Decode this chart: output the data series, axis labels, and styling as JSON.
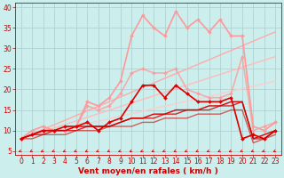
{
  "title": "",
  "xlabel": "Vent moyen/en rafales ( km/h )",
  "ylabel": "",
  "bg_color": "#cceeed",
  "grid_color": "#aacccc",
  "xlim": [
    -0.5,
    23.5
  ],
  "ylim": [
    4,
    41
  ],
  "yticks": [
    5,
    10,
    15,
    20,
    25,
    30,
    35,
    40
  ],
  "xticks": [
    0,
    1,
    2,
    3,
    4,
    5,
    6,
    7,
    8,
    9,
    10,
    11,
    12,
    13,
    14,
    15,
    16,
    17,
    18,
    19,
    20,
    21,
    22,
    23
  ],
  "series": [
    {
      "x": [
        0,
        23
      ],
      "y": [
        8,
        34
      ],
      "color": "#ffaaaa",
      "lw": 1.0,
      "marker": null,
      "ms": 0,
      "alpha": 1.0
    },
    {
      "x": [
        0,
        23
      ],
      "y": [
        8,
        28
      ],
      "color": "#ffbbbb",
      "lw": 1.0,
      "marker": null,
      "ms": 0,
      "alpha": 1.0
    },
    {
      "x": [
        0,
        23
      ],
      "y": [
        8,
        22
      ],
      "color": "#ffcccc",
      "lw": 1.0,
      "marker": null,
      "ms": 0,
      "alpha": 1.0
    },
    {
      "x": [
        0,
        1,
        2,
        3,
        4,
        5,
        6,
        7,
        8,
        9,
        10,
        11,
        12,
        13,
        14,
        15,
        16,
        17,
        18,
        19,
        20,
        21,
        22,
        23
      ],
      "y": [
        8,
        10,
        11,
        10,
        10,
        11,
        17,
        16,
        18,
        22,
        33,
        38,
        35,
        33,
        39,
        35,
        37,
        34,
        37,
        33,
        33,
        11,
        10,
        12
      ],
      "color": "#ff9999",
      "lw": 1.2,
      "marker": "D",
      "ms": 2.0,
      "alpha": 1.0
    },
    {
      "x": [
        0,
        1,
        2,
        3,
        4,
        5,
        6,
        7,
        8,
        9,
        10,
        11,
        12,
        13,
        14,
        15,
        16,
        17,
        18,
        19,
        20,
        21,
        22,
        23
      ],
      "y": [
        8,
        9,
        10,
        10,
        10,
        11,
        16,
        15,
        16,
        19,
        24,
        25,
        24,
        24,
        25,
        20,
        19,
        18,
        18,
        19,
        28,
        10,
        11,
        12
      ],
      "color": "#ff9999",
      "lw": 1.2,
      "marker": "D",
      "ms": 2.0,
      "alpha": 0.75
    },
    {
      "x": [
        0,
        1,
        2,
        3,
        4,
        5,
        6,
        7,
        8,
        9,
        10,
        11,
        12,
        13,
        14,
        15,
        16,
        17,
        18,
        19,
        20,
        21,
        22,
        23
      ],
      "y": [
        8,
        9,
        10,
        10,
        11,
        11,
        12,
        10,
        12,
        13,
        17,
        21,
        21,
        18,
        21,
        19,
        17,
        17,
        17,
        18,
        8,
        9,
        8,
        10
      ],
      "color": "#dd0000",
      "lw": 1.2,
      "marker": "D",
      "ms": 2.0,
      "alpha": 1.0
    },
    {
      "x": [
        0,
        1,
        2,
        3,
        4,
        5,
        6,
        7,
        8,
        9,
        10,
        11,
        12,
        13,
        14,
        15,
        16,
        17,
        18,
        19,
        20,
        21,
        22,
        23
      ],
      "y": [
        8,
        9,
        10,
        10,
        10,
        11,
        11,
        11,
        11,
        12,
        13,
        13,
        14,
        14,
        15,
        15,
        15,
        16,
        16,
        17,
        17,
        8,
        9,
        10
      ],
      "color": "#dd0000",
      "lw": 1.0,
      "marker": null,
      "ms": 0,
      "alpha": 1.0
    },
    {
      "x": [
        0,
        1,
        2,
        3,
        4,
        5,
        6,
        7,
        8,
        9,
        10,
        11,
        12,
        13,
        14,
        15,
        16,
        17,
        18,
        19,
        20,
        21,
        22,
        23
      ],
      "y": [
        8,
        9,
        9,
        10,
        10,
        10,
        11,
        11,
        11,
        12,
        13,
        13,
        13,
        14,
        14,
        15,
        15,
        15,
        16,
        16,
        17,
        8,
        8,
        10
      ],
      "color": "#cc0000",
      "lw": 1.0,
      "marker": null,
      "ms": 0,
      "alpha": 0.8
    },
    {
      "x": [
        0,
        1,
        2,
        3,
        4,
        5,
        6,
        7,
        8,
        9,
        10,
        11,
        12,
        13,
        14,
        15,
        16,
        17,
        18,
        19,
        20,
        21,
        22,
        23
      ],
      "y": [
        8,
        8,
        9,
        9,
        9,
        10,
        10,
        10,
        11,
        11,
        11,
        12,
        12,
        13,
        13,
        13,
        14,
        14,
        14,
        15,
        15,
        7,
        8,
        9
      ],
      "color": "#cc0000",
      "lw": 1.0,
      "marker": null,
      "ms": 0,
      "alpha": 0.6
    }
  ],
  "arrow_color": "#cc0000",
  "xlabel_color": "#cc0000",
  "tick_color": "#cc0000",
  "tick_labelsize": 5.5,
  "xlabel_fontsize": 6.5
}
